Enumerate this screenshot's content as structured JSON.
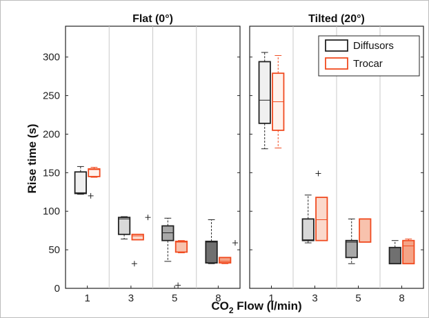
{
  "chart_data": {
    "type": "box",
    "ylabel": "Rise time (s)",
    "xlabel_main": "CO",
    "xlabel_sub": "2",
    "xlabel_rest": " Flow (l/min)",
    "ylim": [
      0,
      340
    ],
    "yticks": [
      0,
      50,
      100,
      150,
      200,
      250,
      300
    ],
    "categories": [
      "1",
      "3",
      "5",
      "8"
    ],
    "legend": {
      "position": "top-right",
      "entries": [
        "Diffusors",
        "Trocar"
      ]
    },
    "colors": {
      "diffusors_edge": "#222222",
      "trocar_edge": "#f04a1f",
      "diffusors_fill": [
        "#f0f0f0",
        "#d8d8d8",
        "#a8a8a8",
        "#707070"
      ],
      "trocar_fill": [
        "#fff2ec",
        "#fbd9cc",
        "#f8c2ad",
        "#f4a487"
      ]
    },
    "panels": [
      {
        "title": "Flat (0°)",
        "series": [
          {
            "name": "Diffusors",
            "boxes": [
              {
                "min": 122,
                "q1": 123,
                "median": 124,
                "q3": 151,
                "max": 158,
                "outliers": [
                  120
                ]
              },
              {
                "min": 64,
                "q1": 70,
                "median": 90,
                "q3": 92,
                "max": 93,
                "outliers": [
                  32
                ]
              },
              {
                "min": 35,
                "q1": 62,
                "median": 72,
                "q3": 81,
                "max": 91,
                "outliers": [
                  4
                ]
              },
              {
                "min": 32,
                "q1": 33,
                "median": 60,
                "q3": 61,
                "max": 89,
                "outliers": []
              }
            ]
          },
          {
            "name": "Trocar",
            "boxes": [
              {
                "min": 144,
                "q1": 145,
                "median": 154,
                "q3": 155,
                "max": 157,
                "outliers": []
              },
              {
                "min": 63,
                "q1": 63,
                "median": 68,
                "q3": 70,
                "max": 70,
                "outliers": [
                  92
                ]
              },
              {
                "min": 46,
                "q1": 47,
                "median": 60,
                "q3": 61,
                "max": 62,
                "outliers": []
              },
              {
                "min": 32,
                "q1": 33,
                "median": 35,
                "q3": 40,
                "max": 40,
                "outliers": [
                  59
                ]
              }
            ]
          }
        ]
      },
      {
        "title": "Tilted (20°)",
        "series": [
          {
            "name": "Diffusors",
            "boxes": [
              {
                "min": 181,
                "q1": 214,
                "median": 244,
                "q3": 294,
                "max": 306,
                "outliers": []
              },
              {
                "min": 59,
                "q1": 62,
                "median": 63,
                "q3": 90,
                "max": 121,
                "outliers": [
                  149
                ]
              },
              {
                "min": 32,
                "q1": 40,
                "median": 60,
                "q3": 62,
                "max": 90,
                "outliers": []
              },
              {
                "min": 32,
                "q1": 32,
                "median": 32,
                "q3": 53,
                "max": 62,
                "outliers": []
              }
            ]
          },
          {
            "name": "Trocar",
            "boxes": [
              {
                "min": 182,
                "q1": 205,
                "median": 242,
                "q3": 279,
                "max": 302,
                "outliers": []
              },
              {
                "min": 62,
                "q1": 62,
                "median": 89,
                "q3": 118,
                "max": 118,
                "outliers": []
              },
              {
                "min": 60,
                "q1": 60,
                "median": 90,
                "q3": 90,
                "max": 90,
                "outliers": []
              },
              {
                "min": 32,
                "q1": 32,
                "median": 55,
                "q3": 62,
                "max": 64,
                "outliers": []
              }
            ]
          }
        ]
      }
    ]
  }
}
